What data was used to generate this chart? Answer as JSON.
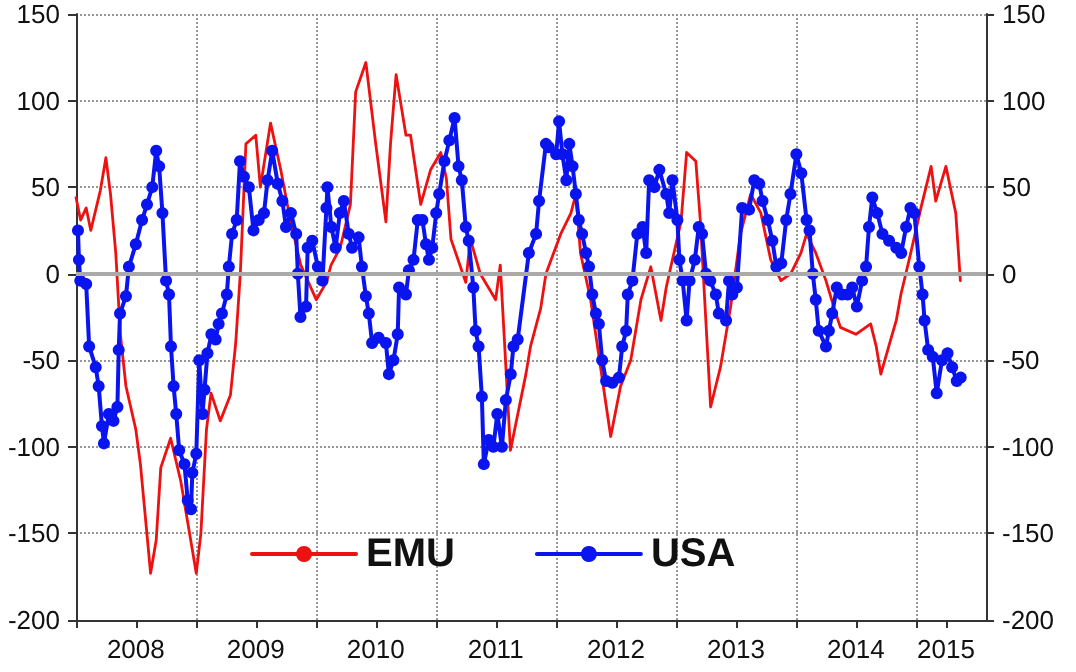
{
  "chart_data": {
    "type": "line",
    "xlim": [
      "2008-01-01",
      "2015-08-01"
    ],
    "xticks": [
      {
        "value": "2008-01-01",
        "label": null
      },
      {
        "value": "2008-07-01",
        "label": "2008"
      },
      {
        "value": "2009-01-01",
        "label": null
      },
      {
        "value": "2009-07-01",
        "label": "2009"
      },
      {
        "value": "2010-01-01",
        "label": null
      },
      {
        "value": "2010-07-01",
        "label": "2010"
      },
      {
        "value": "2011-01-01",
        "label": null
      },
      {
        "value": "2011-07-01",
        "label": "2011"
      },
      {
        "value": "2012-01-01",
        "label": null
      },
      {
        "value": "2012-07-01",
        "label": "2012"
      },
      {
        "value": "2013-01-01",
        "label": null
      },
      {
        "value": "2013-07-01",
        "label": "2013"
      },
      {
        "value": "2014-01-01",
        "label": null
      },
      {
        "value": "2014-07-01",
        "label": "2014"
      },
      {
        "value": "2015-01-01",
        "label": null
      },
      {
        "value": "2015-04-01",
        "label": "2015"
      }
    ],
    "ylim": [
      -200,
      150
    ],
    "yticks": [
      -200,
      -150,
      -100,
      -50,
      0,
      50,
      100,
      150
    ],
    "y2lim": [
      -200,
      150
    ],
    "y2ticks": [
      -200,
      -150,
      -100,
      -50,
      0,
      50,
      100,
      150
    ],
    "grid": true,
    "legend": "bottom",
    "ref_lines": [
      {
        "axis": "y",
        "value": 0,
        "color": "#aaaaaa"
      }
    ],
    "series": [
      {
        "name": "EMU",
        "color": "#ee1111",
        "marker": "none",
        "x": [
          "2008-01-01",
          "2008-01-15",
          "2008-02-01",
          "2008-02-15",
          "2008-03-15",
          "2008-04-01",
          "2008-04-15",
          "2008-05-01",
          "2008-05-15",
          "2008-06-01",
          "2008-07-01",
          "2008-07-15",
          "2008-08-15",
          "2008-09-01",
          "2008-09-15",
          "2008-10-15",
          "2008-11-15",
          "2009-01-01",
          "2009-01-15",
          "2009-02-01",
          "2009-02-15",
          "2009-03-15",
          "2009-04-15",
          "2009-05-01",
          "2009-05-15",
          "2009-06-01",
          "2009-07-01",
          "2009-07-15",
          "2009-08-15",
          "2009-09-15",
          "2009-10-15",
          "2009-11-15",
          "2010-01-01",
          "2010-02-01",
          "2010-02-15",
          "2010-03-15",
          "2010-04-15",
          "2010-05-01",
          "2010-06-01",
          "2010-07-01",
          "2010-08-01",
          "2010-08-15",
          "2010-09-01",
          "2010-10-01",
          "2010-10-15",
          "2010-11-15",
          "2010-12-15",
          "2011-01-15",
          "2011-02-01",
          "2011-02-15",
          "2011-04-01",
          "2011-04-15",
          "2011-05-15",
          "2011-07-01",
          "2011-07-15",
          "2011-08-15",
          "2011-10-01",
          "2011-10-15",
          "2011-11-15",
          "2011-12-01",
          "2012-01-15",
          "2012-02-15",
          "2012-03-01",
          "2012-03-15",
          "2012-04-15",
          "2012-06-15",
          "2012-07-15",
          "2012-08-15",
          "2012-09-15",
          "2012-10-15",
          "2012-11-15",
          "2012-12-01",
          "2012-12-15",
          "2013-01-15",
          "2013-02-01",
          "2013-03-01",
          "2013-03-15",
          "2013-04-15",
          "2013-05-15",
          "2013-06-15",
          "2013-07-15",
          "2013-08-15",
          "2013-09-15",
          "2013-10-15",
          "2013-11-15",
          "2013-12-15",
          "2014-01-15",
          "2014-02-01",
          "2014-03-01",
          "2014-04-01",
          "2014-05-01",
          "2014-05-15",
          "2014-07-01",
          "2014-08-15",
          "2014-09-01",
          "2014-09-15",
          "2014-10-15",
          "2014-11-01",
          "2014-11-15",
          "2014-12-15",
          "2015-01-15",
          "2015-02-15",
          "2015-03-01",
          "2015-04-01",
          "2015-05-01",
          "2015-05-15"
        ],
        "values": [
          44,
          31,
          38,
          25,
          48,
          67,
          46,
          12,
          -35,
          -65,
          -90,
          -110,
          -173,
          -154,
          -112,
          -95,
          -120,
          -173,
          -150,
          -90,
          -69,
          -85,
          -70,
          -40,
          0,
          75,
          80,
          50,
          87,
          60,
          30,
          5,
          -15,
          -5,
          5,
          15,
          40,
          105,
          122,
          75,
          30,
          75,
          115,
          80,
          80,
          40,
          60,
          70,
          55,
          20,
          -5,
          20,
          0,
          -15,
          5,
          -102,
          -58,
          -42,
          -20,
          0,
          23,
          35,
          46,
          12,
          -15,
          -94,
          -65,
          -50,
          -15,
          4,
          -27,
          -8,
          4,
          30,
          70,
          65,
          30,
          -77,
          -54,
          -19,
          23,
          46,
          35,
          8,
          -4,
          0,
          12,
          23,
          12,
          -4,
          -23,
          -31,
          -35,
          -29,
          -42,
          -58,
          -38,
          -27,
          -12,
          12,
          38,
          62,
          42,
          62,
          35,
          -4
        ]
      },
      {
        "name": "USA",
        "color": "#0a14ee",
        "marker": "circle",
        "x": [
          "2008-01-07",
          "2008-01-10",
          "2008-01-14",
          "2008-02-01",
          "2008-02-10",
          "2008-03-01",
          "2008-03-10",
          "2008-03-20",
          "2008-03-26",
          "2008-04-10",
          "2008-04-24",
          "2008-05-06",
          "2008-05-10",
          "2008-05-14",
          "2008-06-01",
          "2008-06-10",
          "2008-07-01",
          "2008-07-20",
          "2008-08-04",
          "2008-08-20",
          "2008-09-01",
          "2008-09-10",
          "2008-09-20",
          "2008-10-01",
          "2008-10-10",
          "2008-10-16",
          "2008-10-24",
          "2008-11-01",
          "2008-11-10",
          "2008-11-26",
          "2008-12-06",
          "2008-12-16",
          "2008-12-20",
          "2009-01-01",
          "2009-01-10",
          "2009-01-20",
          "2009-01-26",
          "2009-02-04",
          "2009-02-16",
          "2009-03-01",
          "2009-03-10",
          "2009-03-20",
          "2009-04-04",
          "2009-04-10",
          "2009-04-20",
          "2009-05-04",
          "2009-05-14",
          "2009-05-26",
          "2009-06-10",
          "2009-06-24",
          "2009-07-10",
          "2009-07-26",
          "2009-08-06",
          "2009-08-20",
          "2009-09-06",
          "2009-09-20",
          "2009-10-01",
          "2009-10-16",
          "2009-11-01",
          "2009-11-06",
          "2009-11-14",
          "2009-12-01",
          "2009-12-06",
          "2009-12-20",
          "2010-01-06",
          "2010-01-20",
          "2010-02-01",
          "2010-02-04",
          "2010-02-16",
          "2010-03-01",
          "2010-03-14",
          "2010-03-26",
          "2010-04-10",
          "2010-04-20",
          "2010-05-10",
          "2010-05-20",
          "2010-06-01",
          "2010-06-10",
          "2010-06-20",
          "2010-07-10",
          "2010-08-01",
          "2010-08-10",
          "2010-08-24",
          "2010-09-06",
          "2010-09-10",
          "2010-10-01",
          "2010-10-10",
          "2010-10-24",
          "2010-11-06",
          "2010-11-20",
          "2010-12-01",
          "2010-12-10",
          "2010-12-20",
          "2011-01-01",
          "2011-01-10",
          "2011-01-26",
          "2011-02-10",
          "2011-02-26",
          "2011-03-10",
          "2011-03-20",
          "2011-04-01",
          "2011-04-10",
          "2011-04-24",
          "2011-05-01",
          "2011-05-10",
          "2011-05-20",
          "2011-05-26",
          "2011-06-10",
          "2011-06-24",
          "2011-07-06",
          "2011-07-20",
          "2011-08-01",
          "2011-08-16",
          "2011-08-24",
          "2011-09-06",
          "2011-10-10",
          "2011-11-01",
          "2011-11-10",
          "2011-12-01",
          "2011-12-10",
          "2012-01-01",
          "2012-01-10",
          "2012-01-20",
          "2012-02-01",
          "2012-02-10",
          "2012-02-20",
          "2012-03-01",
          "2012-03-10",
          "2012-03-20",
          "2012-04-01",
          "2012-04-10",
          "2012-04-20",
          "2012-05-01",
          "2012-05-10",
          "2012-05-20",
          "2012-06-01",
          "2012-06-20",
          "2012-07-10",
          "2012-07-20",
          "2012-08-01",
          "2012-08-06",
          "2012-08-20",
          "2012-09-04",
          "2012-09-20",
          "2012-10-01",
          "2012-10-10",
          "2012-10-26",
          "2012-11-10",
          "2012-12-01",
          "2012-12-10",
          "2012-12-20",
          "2013-01-04",
          "2013-01-10",
          "2013-01-20",
          "2013-02-01",
          "2013-02-10",
          "2013-02-26",
          "2013-03-10",
          "2013-03-20",
          "2013-04-01",
          "2013-04-14",
          "2013-05-01",
          "2013-05-10",
          "2013-06-01",
          "2013-06-10",
          "2013-06-20",
          "2013-07-04",
          "2013-07-20",
          "2013-08-10",
          "2013-08-26",
          "2013-09-10",
          "2013-09-20",
          "2013-10-06",
          "2013-10-20",
          "2013-11-01",
          "2013-11-16",
          "2013-12-01",
          "2013-12-14",
          "2014-01-01",
          "2014-01-16",
          "2014-02-01",
          "2014-02-10",
          "2014-02-20",
          "2014-03-01",
          "2014-03-10",
          "2014-04-01",
          "2014-04-10",
          "2014-04-20",
          "2014-05-04",
          "2014-05-20",
          "2014-06-06",
          "2014-06-20",
          "2014-07-04",
          "2014-07-20",
          "2014-08-01",
          "2014-08-10",
          "2014-08-20",
          "2014-09-04",
          "2014-09-20",
          "2014-10-10",
          "2014-11-01",
          "2014-11-16",
          "2014-12-01",
          "2014-12-14",
          "2014-12-26",
          "2015-01-10",
          "2015-01-20",
          "2015-01-26",
          "2015-02-06",
          "2015-02-20",
          "2015-03-04",
          "2015-03-20",
          "2015-04-06",
          "2015-04-20",
          "2015-05-04",
          "2015-05-16"
        ],
        "values": [
          25,
          8,
          -4,
          -6,
          -42,
          -54,
          -65,
          -88,
          -98,
          -81,
          -85,
          -77,
          -44,
          -23,
          -13,
          4,
          17,
          31,
          40,
          50,
          71,
          62,
          35,
          -4,
          -12,
          -42,
          -65,
          -81,
          -102,
          -110,
          -131,
          -136,
          -115,
          -104,
          -50,
          -81,
          -67,
          -46,
          -35,
          -38,
          -29,
          -23,
          -12,
          4,
          23,
          31,
          65,
          56,
          50,
          25,
          31,
          35,
          54,
          71,
          52,
          42,
          27,
          35,
          23,
          0,
          -25,
          -19,
          15,
          19,
          4,
          -4,
          38,
          50,
          27,
          15,
          35,
          42,
          23,
          15,
          21,
          4,
          -13,
          -23,
          -40,
          -37,
          -40,
          -58,
          -50,
          -35,
          -8,
          -12,
          2,
          8,
          31,
          31,
          17,
          8,
          15,
          35,
          46,
          65,
          77,
          90,
          62,
          54,
          27,
          19,
          -8,
          -33,
          -42,
          -71,
          -110,
          -96,
          -100,
          -81,
          -100,
          -73,
          -58,
          -42,
          -38,
          12,
          23,
          42,
          75,
          73,
          69,
          88,
          69,
          54,
          75,
          62,
          46,
          31,
          23,
          12,
          4,
          -12,
          -23,
          -29,
          -50,
          -62,
          -63,
          -60,
          -42,
          -33,
          -12,
          -4,
          23,
          27,
          12,
          54,
          50,
          60,
          46,
          35,
          54,
          31,
          8,
          -4,
          -27,
          -4,
          8,
          27,
          23,
          0,
          -4,
          -12,
          -23,
          -27,
          -4,
          -12,
          -8,
          38,
          37,
          54,
          52,
          42,
          31,
          19,
          4,
          6,
          31,
          46,
          69,
          58,
          31,
          25,
          0,
          -15,
          -33,
          -42,
          -33,
          -23,
          -8,
          -12,
          -12,
          -8,
          -19,
          -4,
          4,
          27,
          44,
          35,
          23,
          19,
          15,
          12,
          27,
          38,
          35,
          4,
          -12,
          -27,
          -44,
          -48,
          -69,
          -50,
          -46,
          -54,
          -62,
          -60
        ]
      }
    ]
  }
}
